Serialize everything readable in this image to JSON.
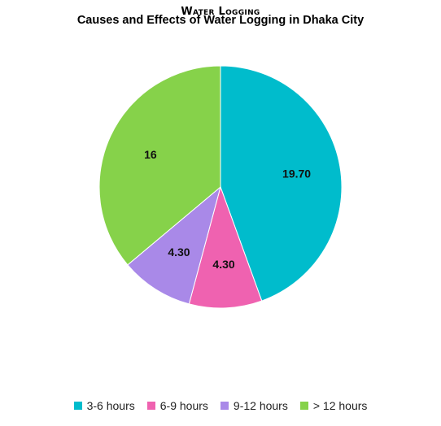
{
  "overtitle": "Water Logging",
  "chart_data": {
    "type": "pie",
    "title": "Causes and Effects of Water Logging in Dhaka City",
    "slices": [
      {
        "label": "3-6 hours",
        "value": 19.7,
        "display": "19.70",
        "color": "#00bccc"
      },
      {
        "label": "6-9 hours",
        "value": 4.3,
        "display": "4.30",
        "color": "#ef62b0"
      },
      {
        "label": "9-12 hours",
        "value": 4.3,
        "display": "4.30",
        "color": "#a989e8"
      },
      {
        "label": "> 12 hours",
        "value": 16,
        "display": "16",
        "color": "#86d24a"
      }
    ],
    "legend_position": "bottom"
  }
}
